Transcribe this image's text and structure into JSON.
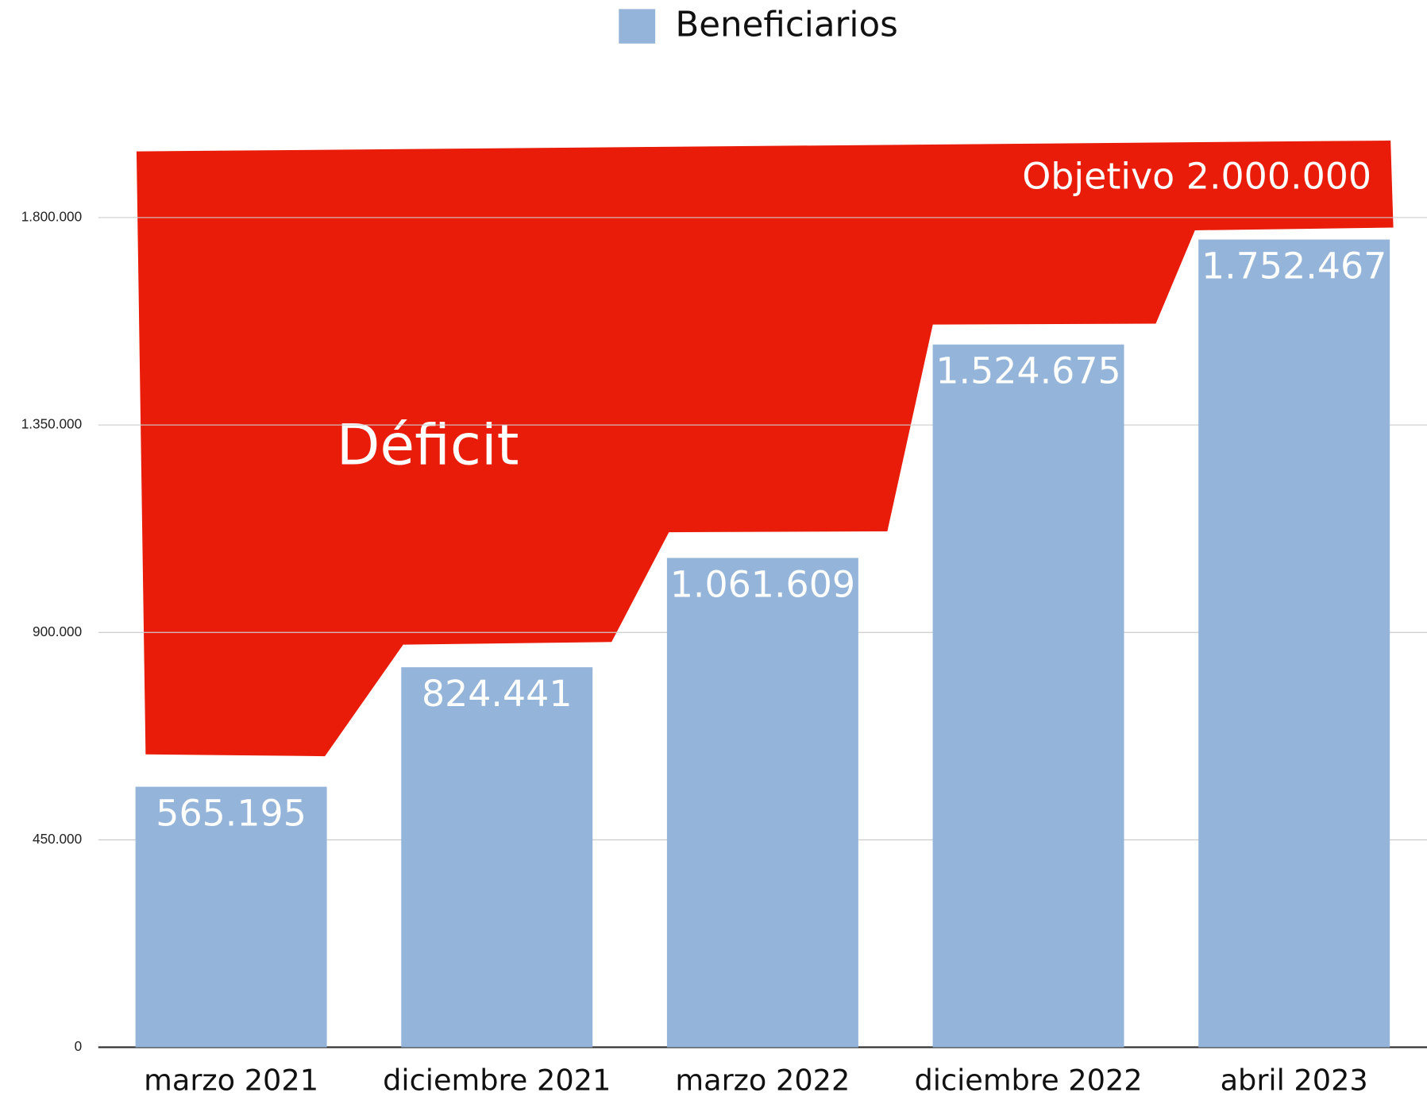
{
  "chart_data": {
    "type": "bar",
    "legend": "Beneficiarios",
    "categories": [
      "marzo 2021",
      "diciembre 2021",
      "marzo 2022",
      "diciembre 2022",
      "abril 2023"
    ],
    "values": [
      565195,
      824441,
      1061609,
      1524675,
      1752467
    ],
    "value_labels": [
      "565.195",
      "824.441",
      "1.061.609",
      "1.524.675",
      "1.752.467"
    ],
    "color": "#95b4da",
    "ylim": [
      0,
      2000000
    ],
    "yticks": [
      0,
      {
        "value": 450000,
        "label": "450.000"
      },
      {
        "value": 900000,
        "label": "900.000"
      },
      {
        "value": 1350000,
        "label": "1.350.000"
      },
      {
        "value": 1800000,
        "label": "1.800.000"
      }
    ],
    "grid": true,
    "annotations": [
      "Objetivo 2.000.000",
      "Déficit"
    ]
  }
}
